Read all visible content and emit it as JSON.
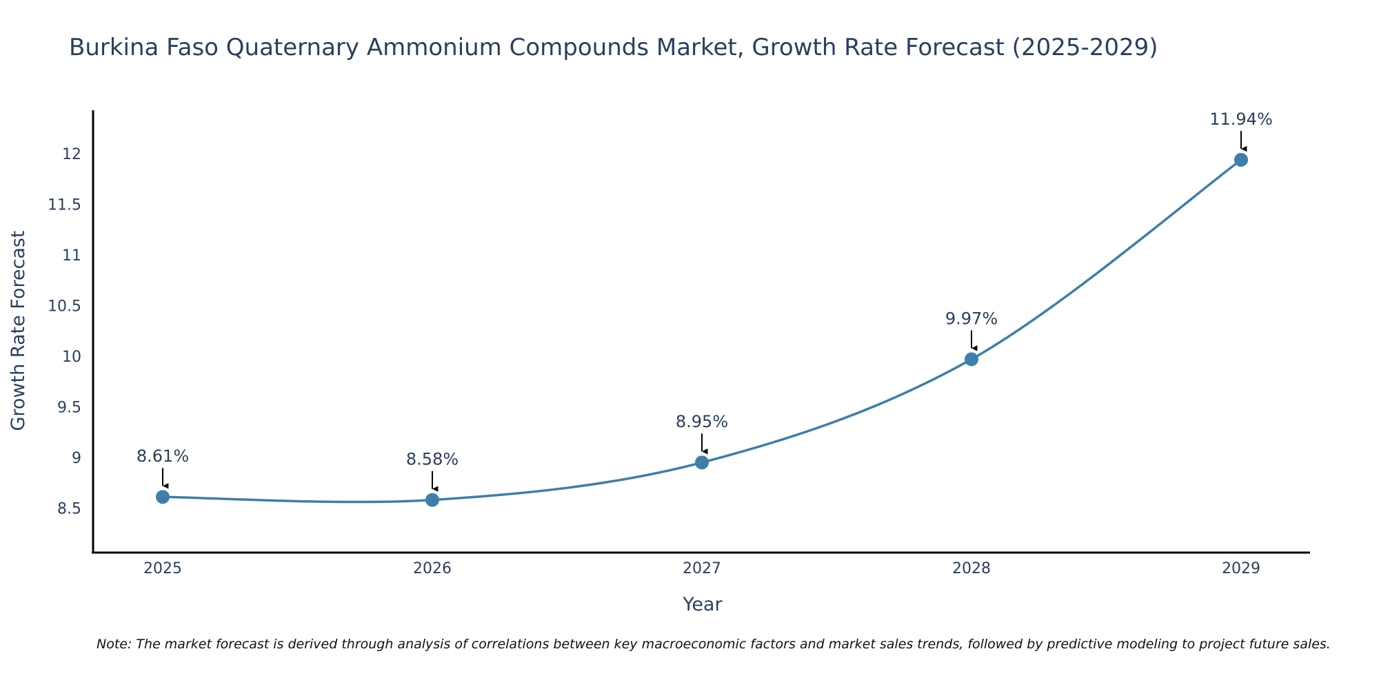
{
  "chart_data": {
    "type": "line",
    "title": "Burkina Faso Quaternary Ammonium Compounds Market, Growth Rate Forecast (2025-2029)",
    "xlabel": "Year",
    "ylabel": "Growth Rate Forecast",
    "categories": [
      "2025",
      "2026",
      "2027",
      "2028",
      "2029"
    ],
    "series": [
      {
        "name": "Growth Rate Forecast",
        "values": [
          8.61,
          8.58,
          8.95,
          9.97,
          11.94
        ],
        "labels": [
          "8.61%",
          "8.58%",
          "8.95%",
          "9.97%",
          "11.94%"
        ],
        "color": "#3d7eaa"
      }
    ],
    "y_ticks": [
      "8.5",
      "9",
      "9.5",
      "10",
      "10.5",
      "11",
      "11.5",
      "12"
    ],
    "ylim": [
      8.06,
      12.43
    ],
    "grid": false,
    "note": "Note: The market forecast is derived through analysis of correlations between key macroeconomic factors and market sales trends, followed by predictive modeling to project future sales."
  }
}
